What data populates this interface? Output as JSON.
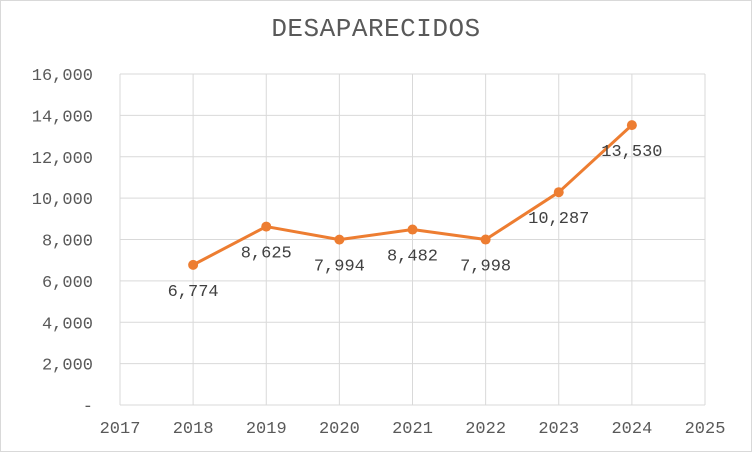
{
  "chart_data": {
    "type": "line",
    "title": "DESAPARECIDOS",
    "xlabel": "",
    "ylabel": "",
    "x": [
      2018,
      2019,
      2020,
      2021,
      2022,
      2023,
      2024
    ],
    "series": [
      {
        "values": [
          6774,
          8625,
          7994,
          8482,
          7998,
          10287,
          13530
        ]
      }
    ],
    "data_labels": [
      "6,774",
      "8,625",
      "7,994",
      "8,482",
      "7,998",
      "10,287",
      "13,530"
    ],
    "xlim": [
      2017,
      2025
    ],
    "x_ticks": [
      "2017",
      "2018",
      "2019",
      "2020",
      "2021",
      "2022",
      "2023",
      "2024",
      "2025"
    ],
    "ylim": [
      0,
      16000
    ],
    "y_ticks": [
      "-",
      "2,000",
      "4,000",
      "6,000",
      "8,000",
      "10,000",
      "12,000",
      "14,000",
      "16,000"
    ],
    "grid": true,
    "legend": "none",
    "line_color": "#ed7d31",
    "grid_color": "#d9d9d9"
  }
}
